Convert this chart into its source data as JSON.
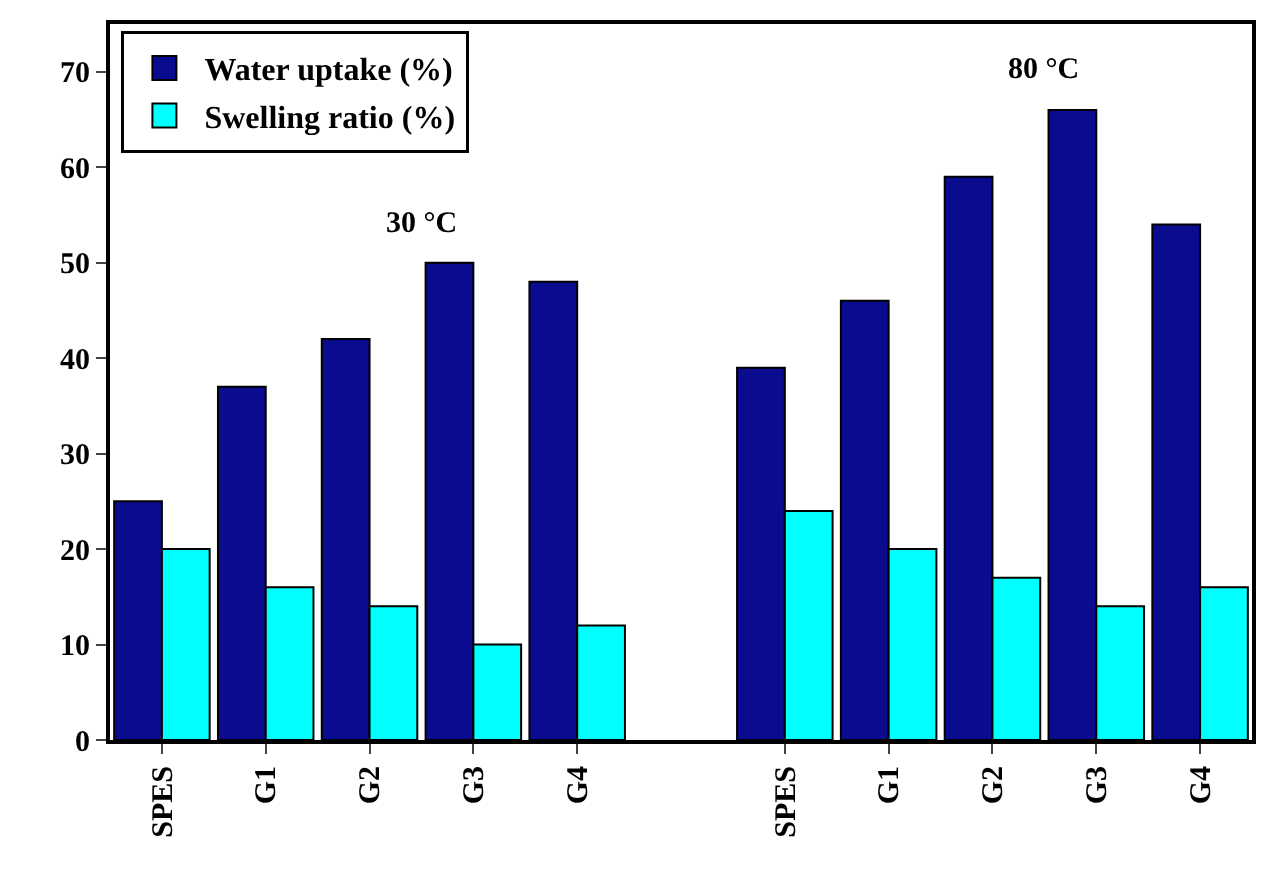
{
  "chart_data": {
    "type": "bar",
    "categories": [
      "SPES",
      "G1",
      "G2",
      "G3",
      "G4",
      null,
      "SPES",
      "G1",
      "G2",
      "G3",
      "G4"
    ],
    "series": [
      {
        "name": "Water uptake (%)",
        "color": "#0b0b8f",
        "values": [
          25,
          37,
          42,
          50,
          48,
          null,
          39,
          46,
          59,
          66,
          54
        ]
      },
      {
        "name": "Swelling ratio (%)",
        "color": "#00ffff",
        "values": [
          20,
          16,
          14,
          10,
          12,
          null,
          24,
          20,
          17,
          14,
          16
        ]
      }
    ],
    "annotations": [
      "30 °C",
      "80 °C"
    ],
    "ylim": [
      0,
      75
    ],
    "yticks": [
      0,
      10,
      20,
      30,
      40,
      50,
      60,
      70
    ],
    "legend": "top left"
  }
}
